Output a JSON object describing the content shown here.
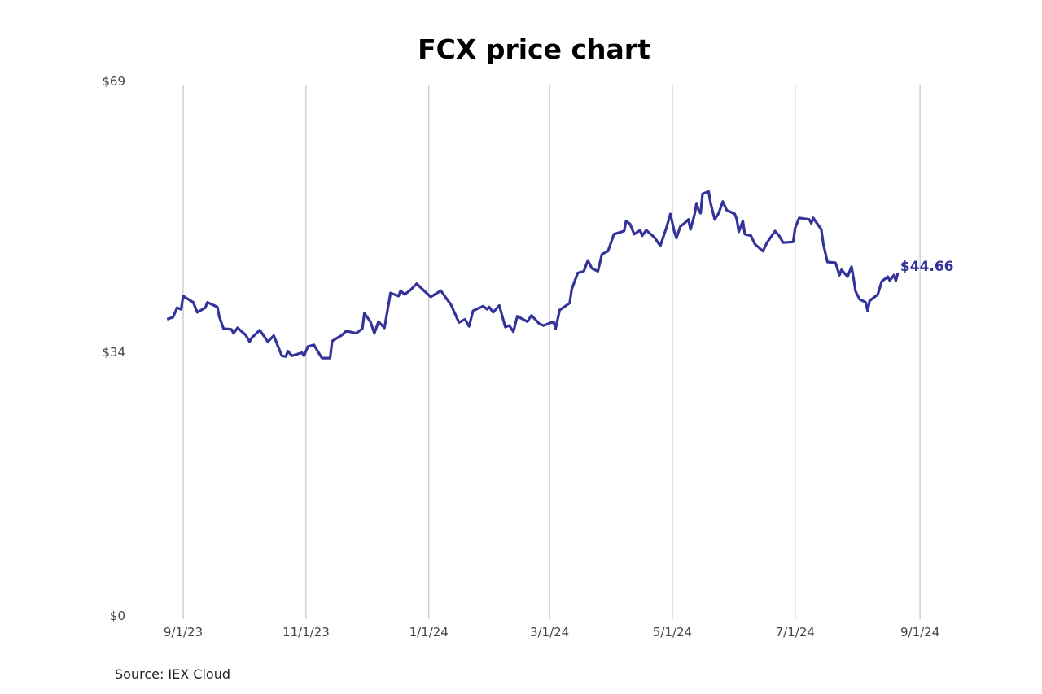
{
  "chart_data": {
    "type": "line",
    "title": "FCX price chart",
    "source": "Source: IEX Cloud",
    "x_unit": "days since 2023-09-01",
    "xlabel": "",
    "ylabel": "",
    "ylim": [
      0,
      69
    ],
    "y_ticks": [
      {
        "value": 0,
        "label": "$0"
      },
      {
        "value": 34,
        "label": "$34"
      },
      {
        "value": 69,
        "label": "$69"
      }
    ],
    "x_ticks": [
      {
        "value": 0,
        "label": "9/1/23"
      },
      {
        "value": 61,
        "label": "11/1/23"
      },
      {
        "value": 122,
        "label": "1/1/24"
      },
      {
        "value": 182,
        "label": "3/1/24"
      },
      {
        "value": 243,
        "label": "5/1/24"
      },
      {
        "value": 304,
        "label": "7/1/24"
      },
      {
        "value": 366,
        "label": "9/1/24"
      }
    ],
    "grid": "vertical",
    "line_color": "#33339a",
    "last_label": "$44.66",
    "series": [
      {
        "name": "FCX",
        "x": [
          -8,
          -5,
          -3,
          -1,
          0,
          5,
          7,
          11,
          12,
          17,
          18,
          20,
          24,
          25,
          27,
          31,
          33,
          34,
          38,
          40,
          42,
          45,
          47,
          49,
          51,
          52,
          54,
          59,
          60,
          62,
          65,
          67,
          69,
          73,
          74,
          79,
          81,
          86,
          89,
          90,
          93,
          95,
          97,
          100,
          103,
          107,
          108,
          110,
          113,
          116,
          120,
          123,
          128,
          133,
          137,
          140,
          142,
          144,
          149,
          151,
          152,
          154,
          157,
          160,
          162,
          164,
          166,
          171,
          173,
          177,
          179,
          184,
          185,
          187,
          192,
          193,
          196,
          199,
          201,
          203,
          206,
          208,
          211,
          214,
          219,
          220,
          222,
          224,
          227,
          228,
          230,
          234,
          237,
          240,
          242,
          244,
          245,
          247,
          249,
          251,
          252,
          254,
          255,
          256,
          257,
          258,
          261,
          262,
          264,
          266,
          268,
          270,
          274,
          275,
          276,
          278,
          279,
          282,
          284,
          288,
          290,
          294,
          296,
          298,
          303,
          304,
          306,
          311,
          312,
          313,
          314,
          317,
          318,
          320,
          324,
          326,
          327,
          330,
          332,
          333,
          334,
          336,
          339,
          340,
          341,
          345,
          347,
          350,
          351,
          353,
          354,
          355
        ],
        "values": [
          38.7,
          39.0,
          40.2,
          40.0,
          41.7,
          40.9,
          39.6,
          40.2,
          40.9,
          40.3,
          39.0,
          37.5,
          37.4,
          36.9,
          37.6,
          36.7,
          35.8,
          36.3,
          37.3,
          36.6,
          35.8,
          36.6,
          35.3,
          34.0,
          33.9,
          34.6,
          34.0,
          34.4,
          34.0,
          35.2,
          35.4,
          34.5,
          33.7,
          33.7,
          35.9,
          36.7,
          37.2,
          36.9,
          37.5,
          39.5,
          38.4,
          36.9,
          38.4,
          37.6,
          42.1,
          41.7,
          42.4,
          41.9,
          42.5,
          43.3,
          42.3,
          41.6,
          42.4,
          40.6,
          38.3,
          38.7,
          37.8,
          39.8,
          40.4,
          40.0,
          40.3,
          39.6,
          40.5,
          37.7,
          37.9,
          37.1,
          39.1,
          38.4,
          39.2,
          38.1,
          37.9,
          38.4,
          37.5,
          39.9,
          40.8,
          42.6,
          44.7,
          44.9,
          46.3,
          45.3,
          44.9,
          47.1,
          47.5,
          49.7,
          50.1,
          51.4,
          51.0,
          49.7,
          50.2,
          49.5,
          50.2,
          49.3,
          48.2,
          50.5,
          52.3,
          50.0,
          49.2,
          50.7,
          51.1,
          51.6,
          50.3,
          52.2,
          53.7,
          52.8,
          52.4,
          54.9,
          55.2,
          53.7,
          51.6,
          52.4,
          53.9,
          52.8,
          52.3,
          51.6,
          50.0,
          51.4,
          49.7,
          49.5,
          48.4,
          47.5,
          48.6,
          50.1,
          49.5,
          48.6,
          48.7,
          50.5,
          51.8,
          51.6,
          51.1,
          51.8,
          51.4,
          50.3,
          48.4,
          46.1,
          46.0,
          44.4,
          45.1,
          44.2,
          45.5,
          44.0,
          42.3,
          41.3,
          40.9,
          39.8,
          41.1,
          41.9,
          43.6,
          44.2,
          43.7,
          44.4,
          43.7,
          44.66
        ]
      }
    ]
  }
}
